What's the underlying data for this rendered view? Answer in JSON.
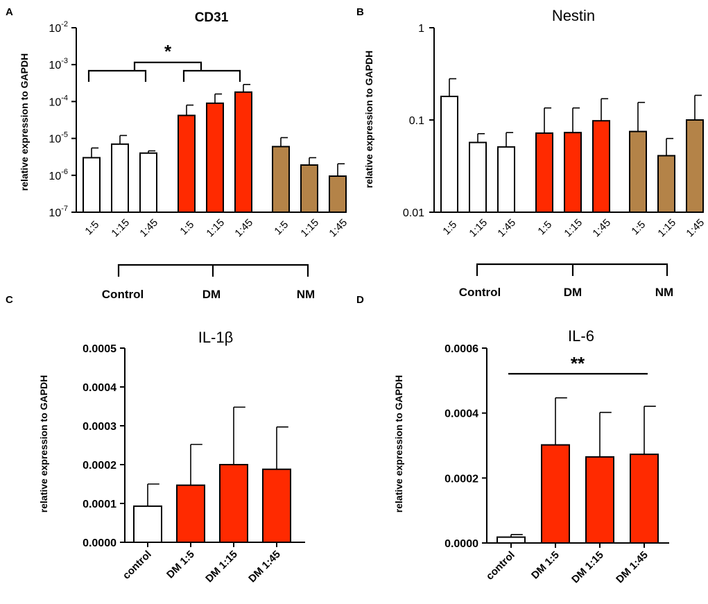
{
  "figure_labels": [
    "A",
    "B",
    "C",
    "D"
  ],
  "colors": {
    "control": "#ffffff",
    "DM": "#ff2a00",
    "NM": "#b48348"
  },
  "chart_data": [
    {
      "panel": "A",
      "type": "bar",
      "title": "CD31",
      "ylabel": "relative expression to GAPDH",
      "yscale": "log",
      "ylim": [
        1e-07,
        0.01
      ],
      "ytick_labels": [
        {
          "base": "10",
          "exp": "-7",
          "value": 1e-07
        },
        {
          "base": "10",
          "exp": "-6",
          "value": 1e-06
        },
        {
          "base": "10",
          "exp": "-5",
          "value": 1e-05
        },
        {
          "base": "10",
          "exp": "-4",
          "value": 0.0001
        },
        {
          "base": "10",
          "exp": "-3",
          "value": 0.001
        },
        {
          "base": "10",
          "exp": "-2",
          "value": 0.01
        }
      ],
      "groups": [
        {
          "name": "Control",
          "color": "control",
          "categories": [
            "1:5",
            "1:15",
            "1:45"
          ],
          "values": [
            3e-06,
            7e-06,
            4e-06
          ],
          "errors": [
            5.5e-06,
            1.2e-05,
            4.6e-06
          ]
        },
        {
          "name": "DM",
          "color": "DM",
          "categories": [
            "1:5",
            "1:15",
            "1:45"
          ],
          "values": [
            4.2e-05,
            9e-05,
            0.00018
          ],
          "errors": [
            8e-05,
            0.00016,
            0.00029
          ]
        },
        {
          "name": "NM",
          "color": "NM",
          "categories": [
            "1:5",
            "1:15",
            "1:45"
          ],
          "values": [
            6e-06,
            1.9e-06,
            9.5e-07
          ],
          "errors": [
            1.05e-05,
            3e-06,
            2.05e-06
          ]
        }
      ],
      "significance": "*",
      "significance_note": "Control vs DM"
    },
    {
      "panel": "B",
      "type": "bar",
      "title": "Nestin",
      "ylabel": "relative expression to GAPDH",
      "yscale": "log",
      "ylim": [
        0.01,
        1
      ],
      "ytick_labels": [
        {
          "label": "0.01",
          "value": 0.01
        },
        {
          "label": "0.1",
          "value": 0.1
        },
        {
          "label": "1",
          "value": 1
        }
      ],
      "groups": [
        {
          "name": "Control",
          "color": "control",
          "categories": [
            "1:5",
            "1:15",
            "1:45"
          ],
          "values": [
            0.18,
            0.057,
            0.051
          ],
          "errors": [
            0.28,
            0.071,
            0.073
          ]
        },
        {
          "name": "DM",
          "color": "DM",
          "categories": [
            "1:5",
            "1:15",
            "1:45"
          ],
          "values": [
            0.072,
            0.073,
            0.098
          ],
          "errors": [
            0.135,
            0.135,
            0.17
          ]
        },
        {
          "name": "NM",
          "color": "NM",
          "categories": [
            "1:5",
            "1:15",
            "1:45"
          ],
          "values": [
            0.075,
            0.041,
            0.1
          ],
          "errors": [
            0.155,
            0.063,
            0.185
          ]
        }
      ]
    },
    {
      "panel": "C",
      "type": "bar",
      "title": "IL-1β",
      "ylabel": "relative expression to GAPDH",
      "yscale": "linear",
      "ylim": [
        0,
        0.0005
      ],
      "ytick_labels": [
        {
          "label": "0.0000",
          "value": 0
        },
        {
          "label": "0.0001",
          "value": 0.0001
        },
        {
          "label": "0.0002",
          "value": 0.0002
        },
        {
          "label": "0.0003",
          "value": 0.0003
        },
        {
          "label": "0.0004",
          "value": 0.0004
        },
        {
          "label": "0.0005",
          "value": 0.0005
        }
      ],
      "categories": [
        "control",
        "DM 1:5",
        "DM 1:15",
        "DM 1:45"
      ],
      "colors": [
        "control",
        "DM",
        "DM",
        "DM"
      ],
      "values": [
        9.3e-05,
        0.000147,
        0.0002,
        0.000188
      ],
      "errors": [
        0.00015,
        0.000252,
        0.000348,
        0.000297
      ]
    },
    {
      "panel": "D",
      "type": "bar",
      "title": "IL-6",
      "ylabel": "relative expression to GAPDH",
      "yscale": "linear",
      "ylim": [
        0,
        0.0006
      ],
      "ytick_labels": [
        {
          "label": "0.0000",
          "value": 0
        },
        {
          "label": "0.0002",
          "value": 0.0002
        },
        {
          "label": "0.0004",
          "value": 0.0004
        },
        {
          "label": "0.0006",
          "value": 0.0006
        }
      ],
      "categories": [
        "control",
        "DM 1:5",
        "DM 1:15",
        "DM 1:45"
      ],
      "colors": [
        "control",
        "DM",
        "DM",
        "DM"
      ],
      "values": [
        1.8e-05,
        0.000302,
        0.000265,
        0.000273
      ],
      "errors": [
        2.6e-05,
        0.000447,
        0.000402,
        0.000421
      ],
      "significance": "**",
      "significance_note": "control vs DM 1:45"
    }
  ]
}
